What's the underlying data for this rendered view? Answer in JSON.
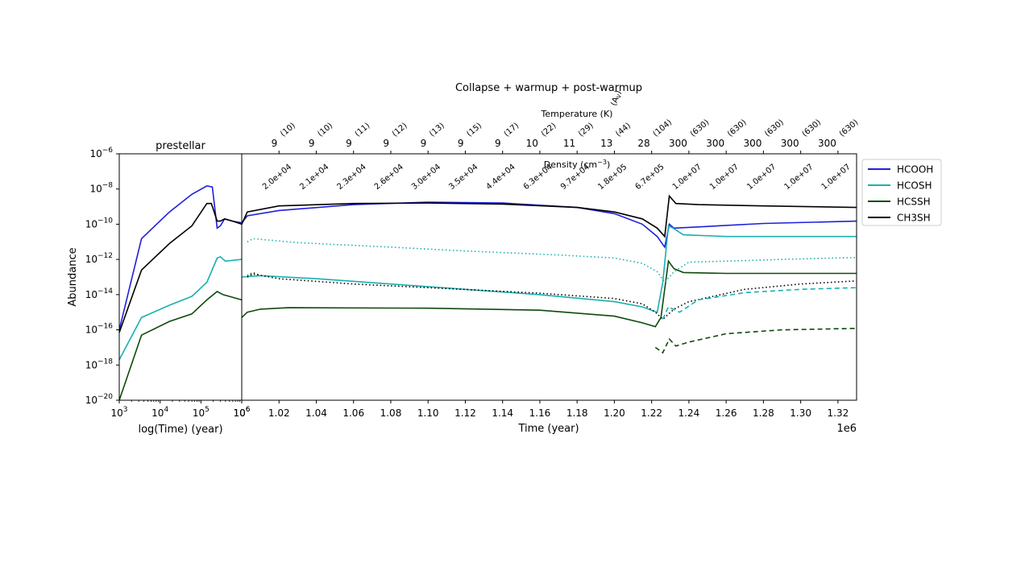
{
  "figure": {
    "suptitle": "Collapse + warmup + post-warmup",
    "top_axis_temperature_label": "Temperature (K)",
    "top_axis_av_label": "(A",
    "top_axis_av_sub": "V",
    "top_axis_av_close": ")",
    "density_label": "Density (cm",
    "density_label_exp": "−3",
    "density_label_close": ")"
  },
  "chart_data": [
    {
      "type": "line",
      "title": "prestellar",
      "xlabel": "log(Time) (year)",
      "ylabel": "Abundance",
      "xscale": "log",
      "yscale": "log",
      "xlim": [
        1000,
        1000000
      ],
      "ylim": [
        1e-20,
        1e-06
      ],
      "x_ticks": [
        {
          "base": "10",
          "exp": "3"
        },
        {
          "base": "10",
          "exp": "4"
        },
        {
          "base": "10",
          "exp": "5"
        },
        {
          "base": "10",
          "exp": "6"
        }
      ],
      "y_ticks": [
        {
          "value": 1e-06,
          "base": "10",
          "exp": "−6"
        },
        {
          "value": 1e-08,
          "base": "10",
          "exp": "−8"
        },
        {
          "value": 1e-10,
          "base": "10",
          "exp": "−10"
        },
        {
          "value": 1e-12,
          "base": "10",
          "exp": "−12"
        },
        {
          "value": 1e-14,
          "base": "10",
          "exp": "−14"
        },
        {
          "value": 1e-16,
          "base": "10",
          "exp": "−16"
        },
        {
          "value": 1e-18,
          "base": "10",
          "exp": "−18"
        },
        {
          "value": 1e-20,
          "base": "10",
          "exp": "−20"
        }
      ],
      "series": [
        {
          "key": "HCOOH",
          "color": "#1f1fdc",
          "style": "solid",
          "points": [
            [
              1000,
              1e-16
            ],
            [
              3500,
              1.5e-11
            ],
            [
              17000,
              5e-10
            ],
            [
              60000,
              5e-09
            ],
            [
              140000,
              1.5e-08
            ],
            [
              190000,
              1.3e-08
            ],
            [
              250000,
              6e-11
            ],
            [
              300000,
              8e-11
            ],
            [
              380000,
              2e-10
            ],
            [
              600000,
              1.5e-10
            ],
            [
              1000000,
              1.2e-10
            ]
          ]
        },
        {
          "key": "HCOSH",
          "color": "#18b0b0",
          "style": "solid",
          "points": [
            [
              1000,
              2e-18
            ],
            [
              3500,
              5e-16
            ],
            [
              17000,
              2.5e-15
            ],
            [
              60000,
              8e-15
            ],
            [
              140000,
              5e-14
            ],
            [
              250000,
              1.2e-12
            ],
            [
              300000,
              1.4e-12
            ],
            [
              400000,
              8e-13
            ],
            [
              1000000,
              1e-12
            ]
          ]
        },
        {
          "key": "HCSSH",
          "color": "#0e4a0e",
          "style": "solid",
          "points": [
            [
              1000,
              1e-20
            ],
            [
              3500,
              5e-17
            ],
            [
              17000,
              3e-16
            ],
            [
              60000,
              8e-16
            ],
            [
              140000,
              5e-15
            ],
            [
              250000,
              1.5e-14
            ],
            [
              350000,
              1e-14
            ],
            [
              1000000,
              5e-15
            ]
          ]
        },
        {
          "key": "CH3SH",
          "color": "#000000",
          "style": "solid",
          "points": [
            [
              1000,
              7e-17
            ],
            [
              3500,
              2.5e-13
            ],
            [
              17000,
              8e-12
            ],
            [
              60000,
              8e-11
            ],
            [
              140000,
              1.5e-09
            ],
            [
              180000,
              1.5e-09
            ],
            [
              250000,
              1.5e-10
            ],
            [
              300000,
              1.5e-10
            ],
            [
              380000,
              2e-10
            ],
            [
              600000,
              1.5e-10
            ],
            [
              1000000,
              1e-10
            ]
          ]
        }
      ]
    },
    {
      "type": "line",
      "xlabel": "Time (year)",
      "x_offset_label": "1e6",
      "xlim": [
        1000000,
        1330000
      ],
      "ylim": [
        1e-20,
        1e-06
      ],
      "yscale": "log",
      "x_ticks": [
        {
          "value": 1000000,
          "label": "10",
          "exp": "6"
        },
        {
          "value": 1020000,
          "label": "1.02"
        },
        {
          "value": 1040000,
          "label": "1.04"
        },
        {
          "value": 1060000,
          "label": "1.06"
        },
        {
          "value": 1080000,
          "label": "1.08"
        },
        {
          "value": 1100000,
          "label": "1.10"
        },
        {
          "value": 1120000,
          "label": "1.12"
        },
        {
          "value": 1140000,
          "label": "1.14"
        },
        {
          "value": 1160000,
          "label": "1.16"
        },
        {
          "value": 1180000,
          "label": "1.18"
        },
        {
          "value": 1200000,
          "label": "1.20"
        },
        {
          "value": 1220000,
          "label": "1.22"
        },
        {
          "value": 1240000,
          "label": "1.24"
        },
        {
          "value": 1260000,
          "label": "1.26"
        },
        {
          "value": 1280000,
          "label": "1.28"
        },
        {
          "value": 1300000,
          "label": "1.30"
        },
        {
          "value": 1320000,
          "label": "1.32"
        }
      ],
      "top_ticks": [
        {
          "value": 1020000,
          "temperature": "9",
          "av": "(10)",
          "density": "2.0e+04"
        },
        {
          "value": 1040000,
          "temperature": "9",
          "av": "(10)",
          "density": "2.1e+04"
        },
        {
          "value": 1060000,
          "temperature": "9",
          "av": "(11)",
          "density": "2.3e+04"
        },
        {
          "value": 1080000,
          "temperature": "9",
          "av": "(12)",
          "density": "2.6e+04"
        },
        {
          "value": 1100000,
          "temperature": "9",
          "av": "(13)",
          "density": "3.0e+04"
        },
        {
          "value": 1120000,
          "temperature": "9",
          "av": "(15)",
          "density": "3.5e+04"
        },
        {
          "value": 1140000,
          "temperature": "9",
          "av": "(17)",
          "density": "4.4e+04"
        },
        {
          "value": 1160000,
          "temperature": "10",
          "av": "(22)",
          "density": "6.3e+04"
        },
        {
          "value": 1180000,
          "temperature": "11",
          "av": "(29)",
          "density": "9.7e+04"
        },
        {
          "value": 1200000,
          "temperature": "13",
          "av": "(44)",
          "density": "1.8e+05"
        },
        {
          "value": 1220000,
          "temperature": "28",
          "av": "(104)",
          "density": "6.7e+05"
        },
        {
          "value": 1240000,
          "temperature": "300",
          "av": "(630)",
          "density": "1.0e+07"
        },
        {
          "value": 1260000,
          "temperature": "300",
          "av": "(630)",
          "density": "1.0e+07"
        },
        {
          "value": 1280000,
          "temperature": "300",
          "av": "(630)",
          "density": "1.0e+07"
        },
        {
          "value": 1300000,
          "temperature": "300",
          "av": "(630)",
          "density": "1.0e+07"
        },
        {
          "value": 1320000,
          "temperature": "300",
          "av": "(630)",
          "density": "1.0e+07"
        }
      ],
      "series": [
        {
          "key": "HCOOH",
          "color": "#1f1fdc",
          "style": "solid",
          "points": [
            [
              1000000,
              1.2e-10
            ],
            [
              1003000,
              3e-10
            ],
            [
              1020000,
              6e-10
            ],
            [
              1060000,
              1.3e-09
            ],
            [
              1100000,
              1.8e-09
            ],
            [
              1140000,
              1.6e-09
            ],
            [
              1180000,
              9e-10
            ],
            [
              1200000,
              4e-10
            ],
            [
              1215000,
              1e-10
            ],
            [
              1223000,
              2e-11
            ],
            [
              1227000,
              5e-12
            ],
            [
              1229500,
              1e-10
            ],
            [
              1232000,
              6e-11
            ],
            [
              1245000,
              7e-11
            ],
            [
              1280000,
              1.1e-10
            ],
            [
              1330000,
              1.5e-10
            ]
          ]
        },
        {
          "key": "CH3SH",
          "color": "#000000",
          "style": "solid",
          "points": [
            [
              1000000,
              1e-10
            ],
            [
              1003000,
              5e-10
            ],
            [
              1020000,
              1.1e-09
            ],
            [
              1060000,
              1.5e-09
            ],
            [
              1100000,
              1.6e-09
            ],
            [
              1140000,
              1.4e-09
            ],
            [
              1180000,
              9e-10
            ],
            [
              1200000,
              5e-10
            ],
            [
              1215000,
              2e-10
            ],
            [
              1223000,
              6e-11
            ],
            [
              1227000,
              2e-11
            ],
            [
              1229500,
              4e-09
            ],
            [
              1233000,
              1.5e-09
            ],
            [
              1245000,
              1.3e-09
            ],
            [
              1280000,
              1.1e-09
            ],
            [
              1330000,
              9e-10
            ]
          ]
        },
        {
          "key": "HCOSH",
          "color": "#18b0b0",
          "style": "solid",
          "points": [
            [
              1000000,
              1e-13
            ],
            [
              1010000,
              1.2e-13
            ],
            [
              1040000,
              8e-14
            ],
            [
              1080000,
              4e-14
            ],
            [
              1120000,
              2e-14
            ],
            [
              1160000,
              1e-14
            ],
            [
              1200000,
              4e-15
            ],
            [
              1215000,
              2e-15
            ],
            [
              1223000,
              1e-15
            ],
            [
              1226000,
              5e-14
            ],
            [
              1229000,
              8e-11
            ],
            [
              1231500,
              6e-11
            ],
            [
              1237000,
              2.5e-11
            ],
            [
              1260000,
              2e-11
            ],
            [
              1330000,
              2e-11
            ]
          ]
        },
        {
          "key": "HCSSH",
          "color": "#0e4a0e",
          "style": "solid",
          "points": [
            [
              1000000,
              5e-16
            ],
            [
              1003000,
              1e-15
            ],
            [
              1010000,
              1.5e-15
            ],
            [
              1025000,
              1.8e-15
            ],
            [
              1100000,
              1.7e-15
            ],
            [
              1160000,
              1.3e-15
            ],
            [
              1200000,
              6e-16
            ],
            [
              1215000,
              2.5e-16
            ],
            [
              1222000,
              1.5e-16
            ],
            [
              1225000,
              5e-16
            ],
            [
              1229000,
              8e-13
            ],
            [
              1232000,
              3e-13
            ],
            [
              1237000,
              1.8e-13
            ],
            [
              1260000,
              1.6e-13
            ],
            [
              1330000,
              1.6e-13
            ]
          ]
        },
        {
          "key": "HCOSH",
          "color": "#18b0b0",
          "style": "dotted",
          "points": [
            [
              1003000,
              1e-11
            ],
            [
              1006000,
              1.5e-11
            ],
            [
              1030000,
              9e-12
            ],
            [
              1080000,
              5e-12
            ],
            [
              1120000,
              3e-12
            ],
            [
              1170000,
              1.8e-12
            ],
            [
              1200000,
              1.2e-12
            ],
            [
              1215000,
              6e-13
            ],
            [
              1223000,
              2e-13
            ],
            [
              1227000,
              5e-14
            ],
            [
              1232000,
              2e-13
            ],
            [
              1240000,
              7e-13
            ],
            [
              1260000,
              8e-13
            ],
            [
              1290000,
              1e-12
            ],
            [
              1330000,
              1.3e-12
            ]
          ]
        },
        {
          "key": "CH3SH",
          "color": "#000000",
          "style": "dotted",
          "points": [
            [
              1003000,
              1e-13
            ],
            [
              1006000,
              1.5e-13
            ],
            [
              1020000,
              8e-14
            ],
            [
              1060000,
              4e-14
            ],
            [
              1100000,
              2.5e-14
            ],
            [
              1160000,
              1.2e-14
            ],
            [
              1200000,
              6e-15
            ],
            [
              1215000,
              3e-15
            ],
            [
              1222000,
              1e-15
            ],
            [
              1226000,
              4e-16
            ],
            [
              1232000,
              1.5e-15
            ],
            [
              1240000,
              4e-15
            ],
            [
              1270000,
              2e-14
            ],
            [
              1300000,
              4e-14
            ],
            [
              1330000,
              6e-14
            ]
          ]
        },
        {
          "key": "HCSSH",
          "color": "#0e4a0e",
          "style": "dotted",
          "points": [
            [
              1003000,
              1.2e-13
            ],
            [
              1006000,
              1.8e-13
            ],
            [
              1010000,
              1.2e-13
            ]
          ]
        },
        {
          "key": "HCOSH",
          "color": "#18b0b0",
          "style": "dashed",
          "points": [
            [
              1226000,
              4e-16
            ],
            [
              1229000,
              2e-15
            ],
            [
              1235000,
              1e-15
            ],
            [
              1245000,
              5e-15
            ],
            [
              1270000,
              1.3e-14
            ],
            [
              1300000,
              2e-14
            ],
            [
              1330000,
              2.5e-14
            ]
          ]
        },
        {
          "key": "HCSSH",
          "color": "#0e4a0e",
          "style": "dashed",
          "points": [
            [
              1222000,
              1e-17
            ],
            [
              1226000,
              5e-18
            ],
            [
              1229500,
              3e-17
            ],
            [
              1233000,
              1.2e-17
            ],
            [
              1240000,
              2e-17
            ],
            [
              1260000,
              6e-17
            ],
            [
              1290000,
              1e-16
            ],
            [
              1330000,
              1.2e-16
            ]
          ]
        }
      ],
      "legend": {
        "placement": "outside-right",
        "entries": [
          {
            "label": "HCOOH",
            "color": "#1f1fdc"
          },
          {
            "label": "HCOSH",
            "color": "#18b0b0"
          },
          {
            "label": "HCSSH",
            "color": "#0e4a0e"
          },
          {
            "label": "CH3SH",
            "color": "#000000"
          }
        ]
      }
    }
  ]
}
